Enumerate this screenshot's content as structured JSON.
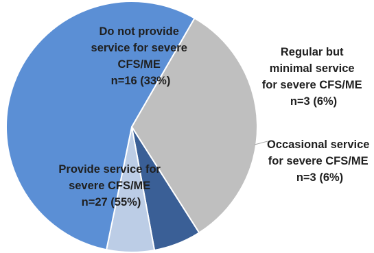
{
  "chart_data": {
    "type": "pie",
    "slices": [
      {
        "label_lines": [
          "Do not provide",
          "service for severe",
          "CFS/ME",
          "n=16 (33%)"
        ],
        "value": 16,
        "percent": 33,
        "color": "#bfbfbf"
      },
      {
        "label_lines": [
          "Regular but",
          "minimal service",
          "for severe CFS/ME",
          "n=3 (6%)"
        ],
        "value": 3,
        "percent": 6,
        "color": "#3a5f96"
      },
      {
        "label_lines": [
          "Occasional service",
          "for severe CFS/ME",
          "n=3 (6%)"
        ],
        "value": 3,
        "percent": 6,
        "color": "#bccde6"
      },
      {
        "label_lines": [
          "Provide service for",
          "severe CFS/ME",
          "n=27 (55%)"
        ],
        "value": 27,
        "percent": 55,
        "color": "#5b8fd5"
      }
    ],
    "start_angle_deg": -60,
    "direction": "clockwise",
    "legend": "none"
  }
}
